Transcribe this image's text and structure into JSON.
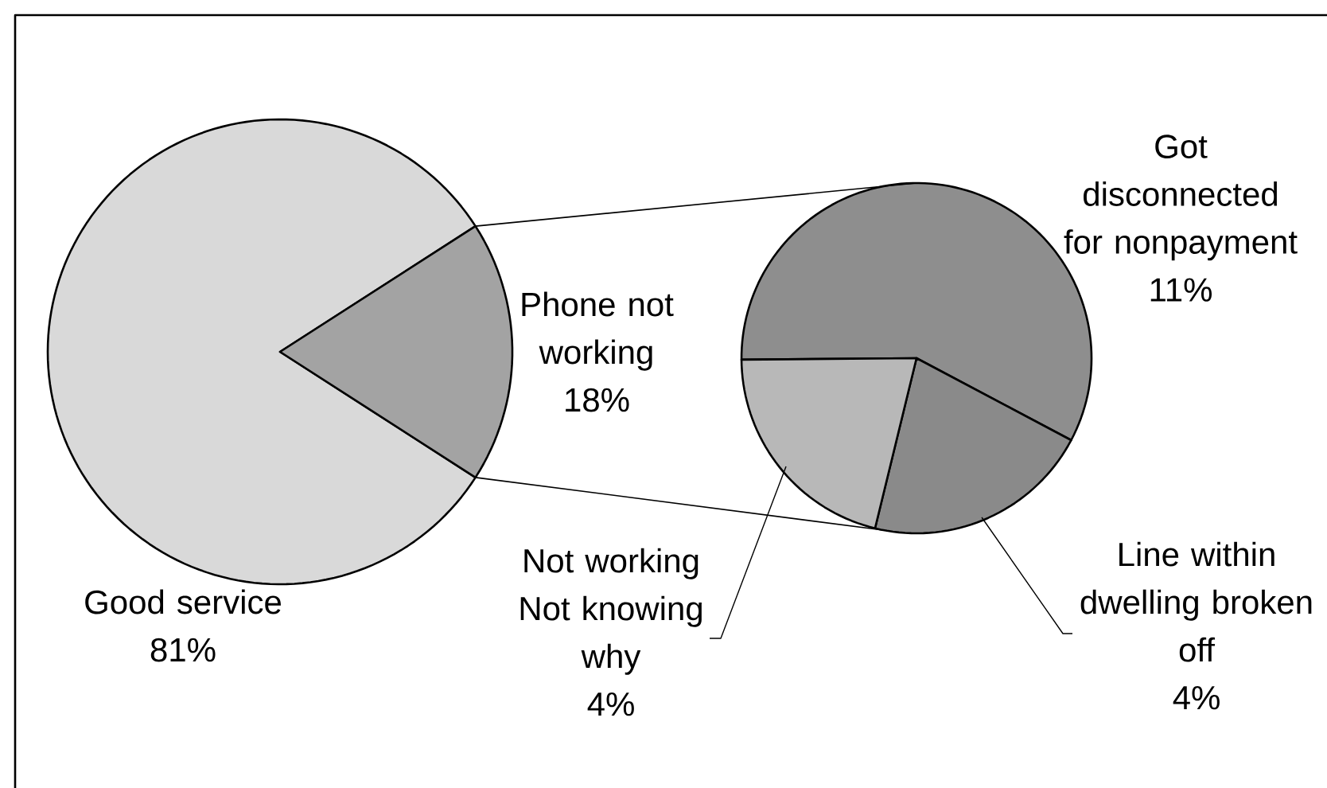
{
  "chart_data": [
    {
      "type": "pie",
      "categories": [
        "Good service",
        "Phone not working"
      ],
      "values": [
        81,
        18
      ],
      "colors": [
        "#d9d9d9",
        "#a3a3a3"
      ],
      "value_labels": [
        "81%",
        "18%"
      ]
    },
    {
      "type": "pie",
      "categories": [
        "Got disconnected for nonpayment",
        "Line within dwelling broken off",
        "Not working Not knowing why"
      ],
      "values": [
        11,
        4,
        4
      ],
      "colors": [
        "#8e8e8e",
        "#8a8a8a",
        "#b8b8b8"
      ],
      "value_labels": [
        "11%",
        "4%",
        "4%"
      ]
    }
  ]
}
